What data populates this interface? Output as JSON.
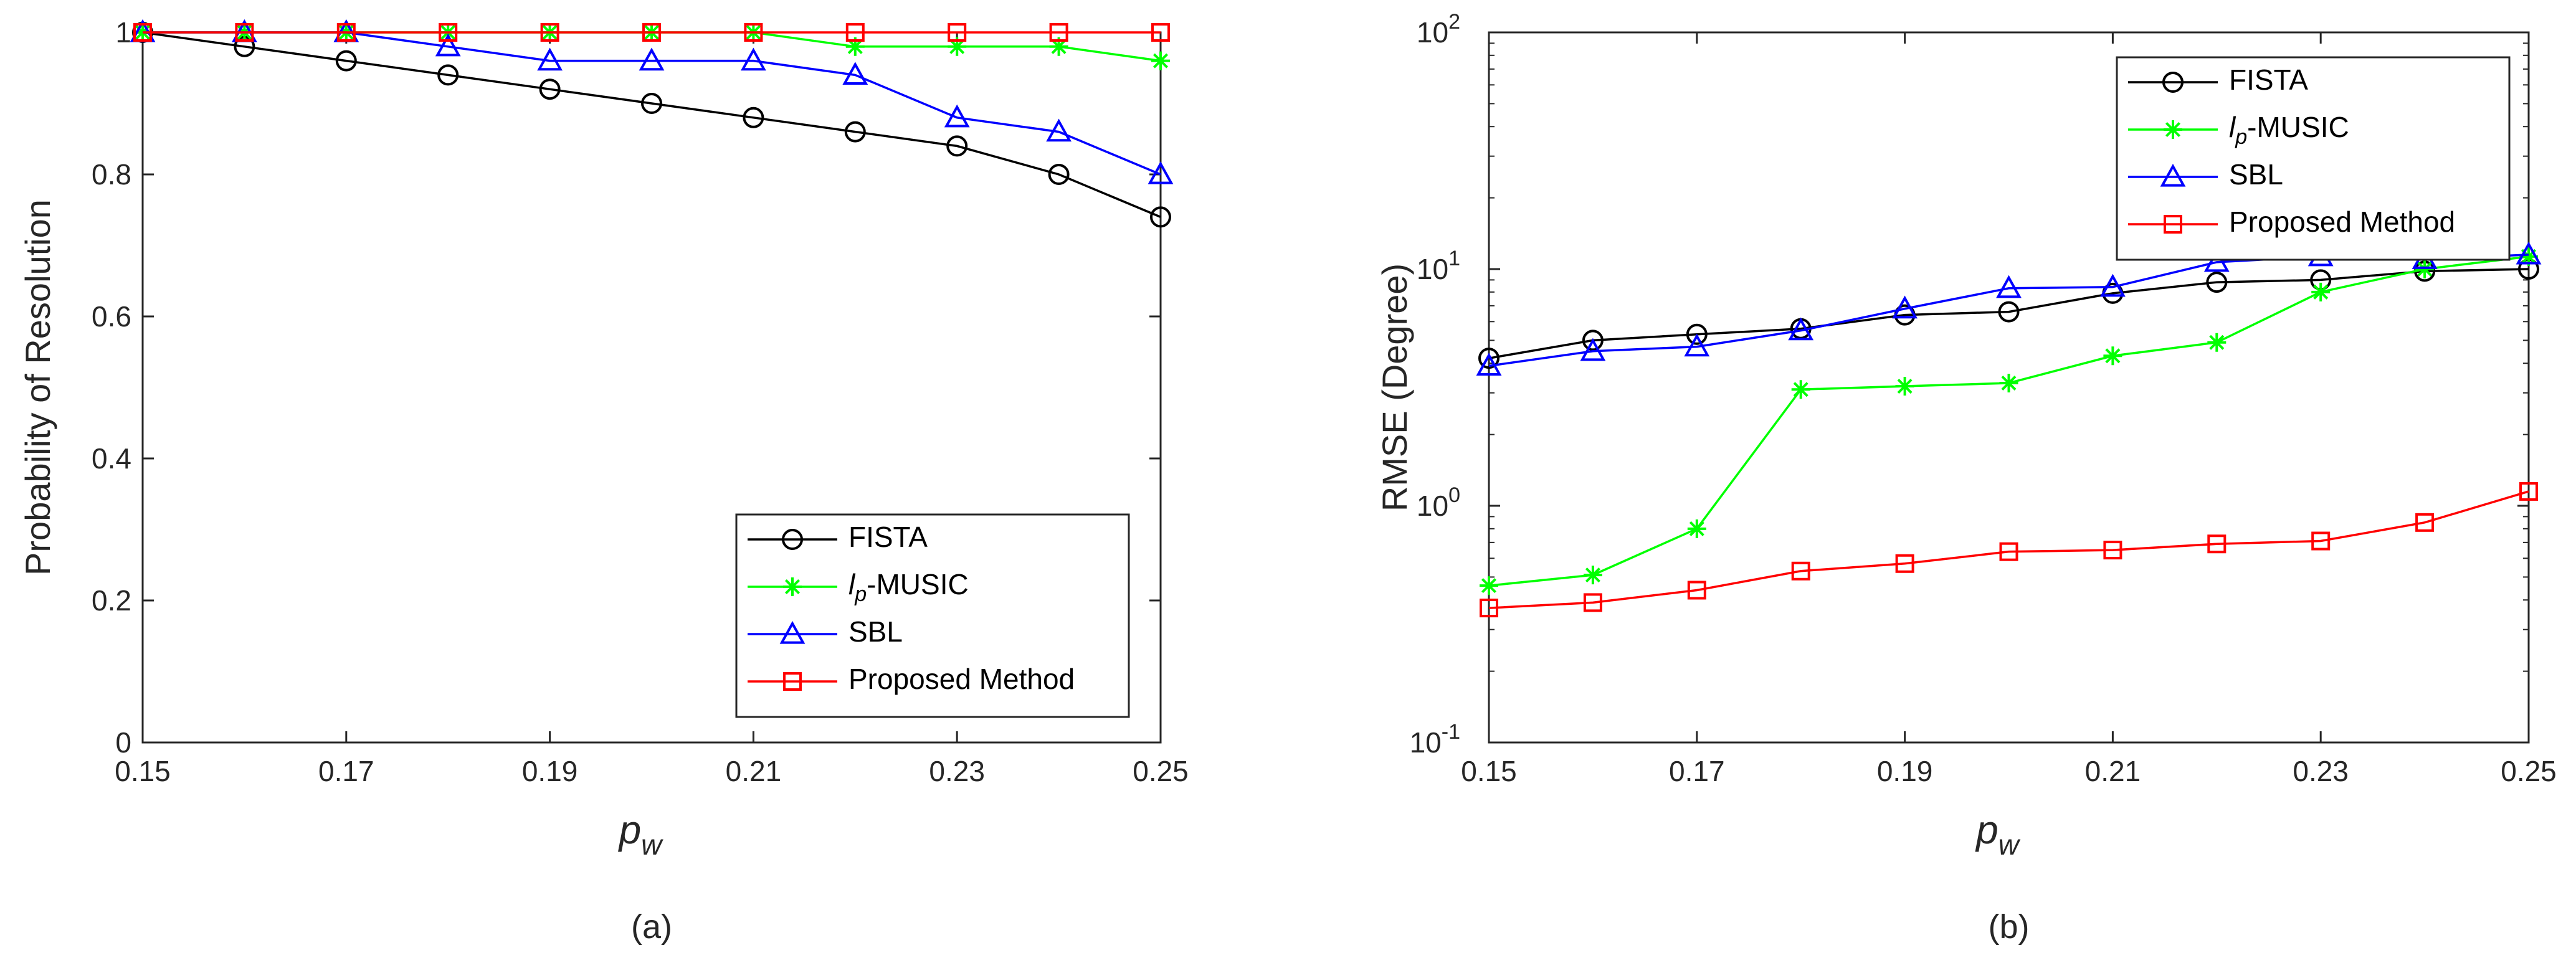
{
  "chart_data": [
    {
      "type": "line",
      "caption": "(a)",
      "xlabel": "p",
      "xlabel_sub": "w",
      "ylabel": "Probability of Resolution",
      "x": [
        0.15,
        0.16,
        0.17,
        0.18,
        0.19,
        0.2,
        0.21,
        0.22,
        0.23,
        0.24,
        0.25
      ],
      "xlim": [
        0.15,
        0.25
      ],
      "ylim": [
        0,
        1
      ],
      "yscale": "linear",
      "xticks": [
        "0.15",
        "0.17",
        "0.19",
        "0.21",
        "0.23",
        "0.25"
      ],
      "yticks": [
        "0",
        "0.2",
        "0.4",
        "0.6",
        "0.8",
        "1"
      ],
      "grid": false,
      "legend_position": "bottom-right",
      "series": [
        {
          "name": "FISTA",
          "color": "#000000",
          "marker": "circle",
          "values": [
            1.0,
            0.98,
            0.96,
            0.94,
            0.92,
            0.9,
            0.88,
            0.86,
            0.84,
            0.8,
            0.74
          ]
        },
        {
          "name": "l_p-MUSIC",
          "color": "#00ff00",
          "marker": "star",
          "values": [
            1.0,
            1.0,
            1.0,
            1.0,
            1.0,
            1.0,
            1.0,
            0.98,
            0.98,
            0.98,
            0.96
          ]
        },
        {
          "name": "SBL",
          "color": "#0000ff",
          "marker": "triangle",
          "values": [
            1.0,
            1.0,
            1.0,
            0.98,
            0.96,
            0.96,
            0.96,
            0.94,
            0.88,
            0.86,
            0.8
          ]
        },
        {
          "name": "Proposed Method",
          "color": "#ff0000",
          "marker": "square",
          "values": [
            1.0,
            1.0,
            1.0,
            1.0,
            1.0,
            1.0,
            1.0,
            1.0,
            1.0,
            1.0,
            1.0
          ]
        }
      ]
    },
    {
      "type": "line",
      "caption": "(b)",
      "xlabel": "p",
      "xlabel_sub": "w",
      "ylabel": "RMSE (Degree)",
      "x": [
        0.15,
        0.16,
        0.17,
        0.18,
        0.19,
        0.2,
        0.21,
        0.22,
        0.23,
        0.24,
        0.25
      ],
      "xlim": [
        0.15,
        0.25
      ],
      "ylim": [
        0.1,
        100
      ],
      "yscale": "log",
      "xticks": [
        "0.15",
        "0.17",
        "0.19",
        "0.21",
        "0.23",
        "0.25"
      ],
      "yticks": [
        {
          "base": "10",
          "exp": "-1",
          "value": 0.1
        },
        {
          "base": "10",
          "exp": "0",
          "value": 1
        },
        {
          "base": "10",
          "exp": "1",
          "value": 10
        },
        {
          "base": "10",
          "exp": "2",
          "value": 100
        }
      ],
      "grid": false,
      "legend_position": "top-right",
      "series": [
        {
          "name": "FISTA",
          "color": "#000000",
          "marker": "circle",
          "values": [
            4.2,
            5.0,
            5.3,
            5.6,
            6.4,
            6.6,
            7.9,
            8.8,
            9.0,
            9.8,
            10.0
          ]
        },
        {
          "name": "l_p-MUSIC",
          "color": "#00ff00",
          "marker": "star",
          "values": [
            0.46,
            0.51,
            0.8,
            3.1,
            3.2,
            3.3,
            4.3,
            4.9,
            8.0,
            10.0,
            11.3
          ]
        },
        {
          "name": "SBL",
          "color": "#0000ff",
          "marker": "triangle",
          "values": [
            3.9,
            4.5,
            4.7,
            5.5,
            6.8,
            8.3,
            8.4,
            10.7,
            11.3,
            11.0,
            11.5
          ]
        },
        {
          "name": "Proposed Method",
          "color": "#ff0000",
          "marker": "square",
          "values": [
            0.37,
            0.39,
            0.44,
            0.53,
            0.57,
            0.64,
            0.65,
            0.69,
            0.71,
            0.85,
            1.15
          ]
        }
      ]
    }
  ]
}
